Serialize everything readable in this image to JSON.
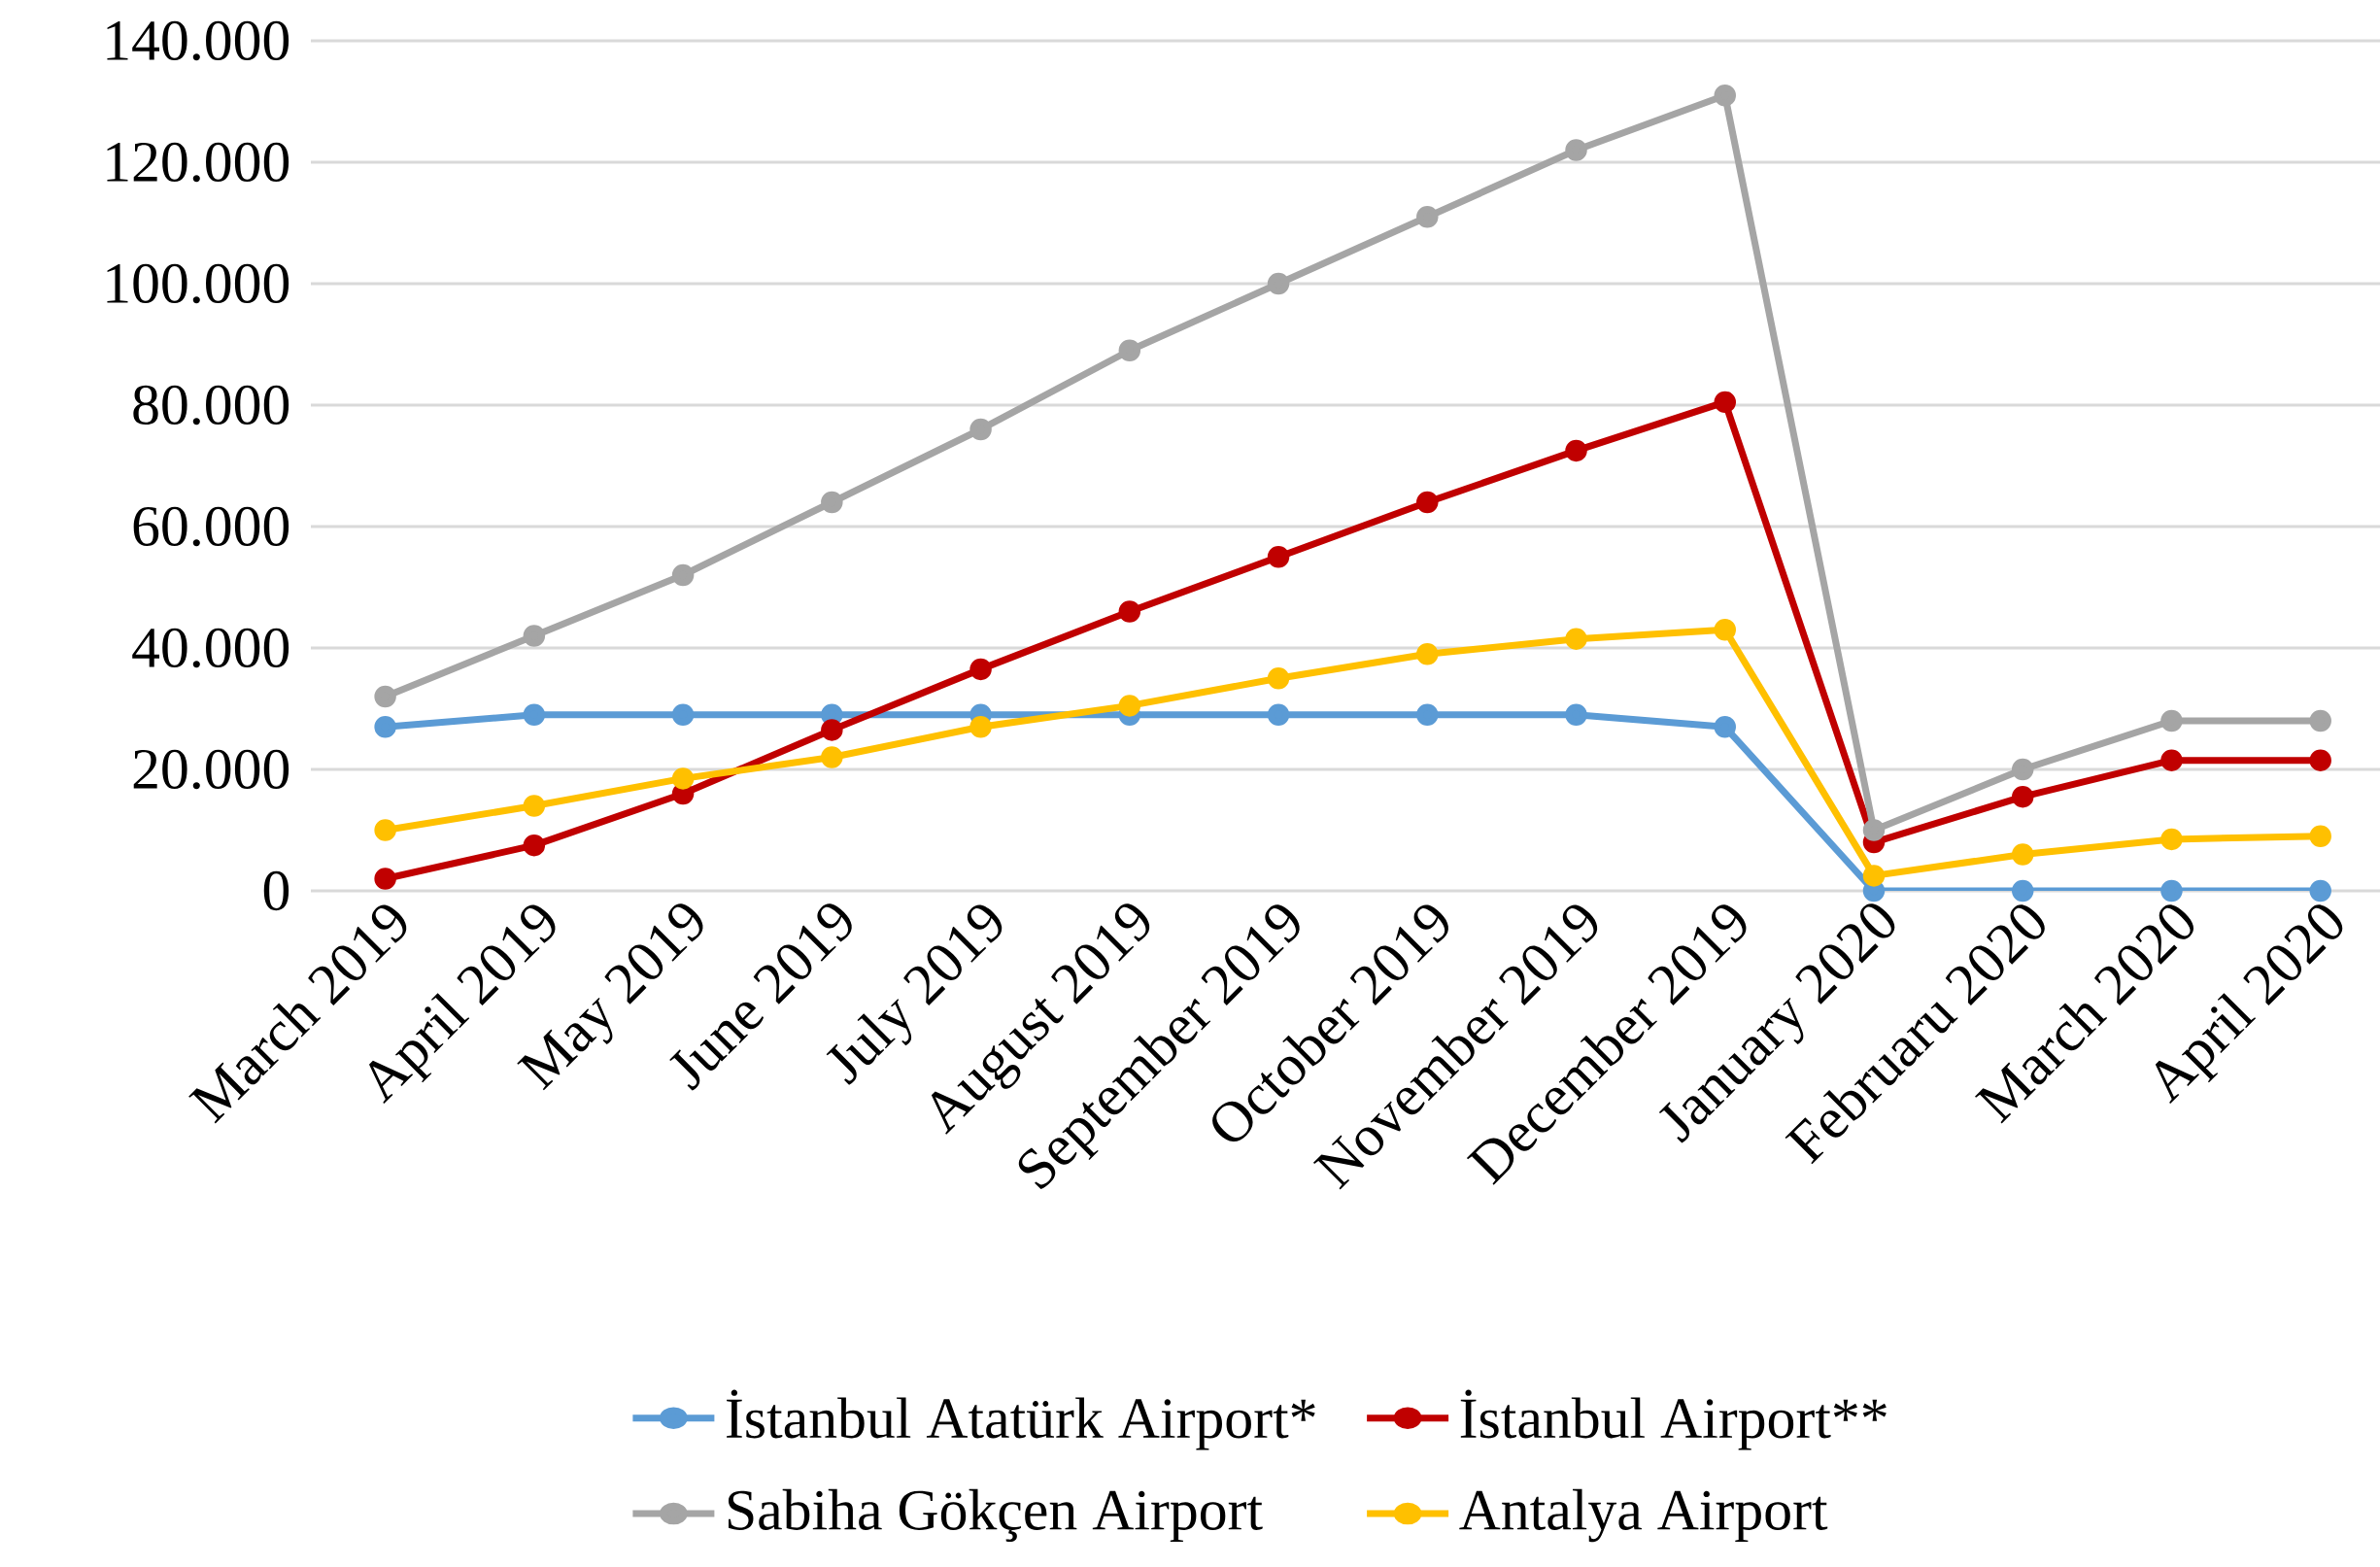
{
  "chart_data": {
    "type": "line",
    "categories": [
      "March 2019",
      "April 2019",
      "May 2019",
      "June 2019",
      "July 2019",
      "August 2019",
      "September 2019",
      "October 2019",
      "November 2019",
      "December 2019",
      "January 2020",
      "Februaru 2020",
      "March 2020",
      "April 2020"
    ],
    "series": [
      {
        "name": "İstanbul Atatürk Airport*",
        "color": "#5b9bd5",
        "values": [
          27000,
          29000,
          29000,
          29000,
          29000,
          29000,
          29000,
          29000,
          29000,
          27000,
          0,
          0,
          0,
          0
        ]
      },
      {
        "name": "İstanbul Airport**",
        "color": "#c00000",
        "values": [
          2000,
          7500,
          16000,
          26500,
          36500,
          46000,
          55000,
          64000,
          72500,
          80500,
          8000,
          15500,
          21500,
          21500
        ]
      },
      {
        "name": "Sabiha Gökçen Airport",
        "color": "#a5a5a5",
        "values": [
          32000,
          42000,
          52000,
          64000,
          76000,
          89000,
          100000,
          111000,
          122000,
          131000,
          10000,
          20000,
          28000,
          28000
        ]
      },
      {
        "name": "Antalya Airport",
        "color": "#ffc000",
        "values": [
          10000,
          14000,
          18500,
          22000,
          27000,
          30500,
          35000,
          39000,
          41500,
          43000,
          2500,
          6000,
          8500,
          9000
        ]
      }
    ],
    "ylim": [
      0,
      140000
    ],
    "yticks": [
      {
        "value": 0,
        "label": "0"
      },
      {
        "value": 20000,
        "label": "20.000"
      },
      {
        "value": 40000,
        "label": "40.000"
      },
      {
        "value": 60000,
        "label": "60.000"
      },
      {
        "value": 80000,
        "label": "80.000"
      },
      {
        "value": 100000,
        "label": "100.000"
      },
      {
        "value": 120000,
        "label": "120.000"
      },
      {
        "value": 140000,
        "label": "140.000"
      }
    ],
    "grid": "y",
    "legend": "bottom",
    "marker": "circle",
    "line_style": "solid"
  }
}
